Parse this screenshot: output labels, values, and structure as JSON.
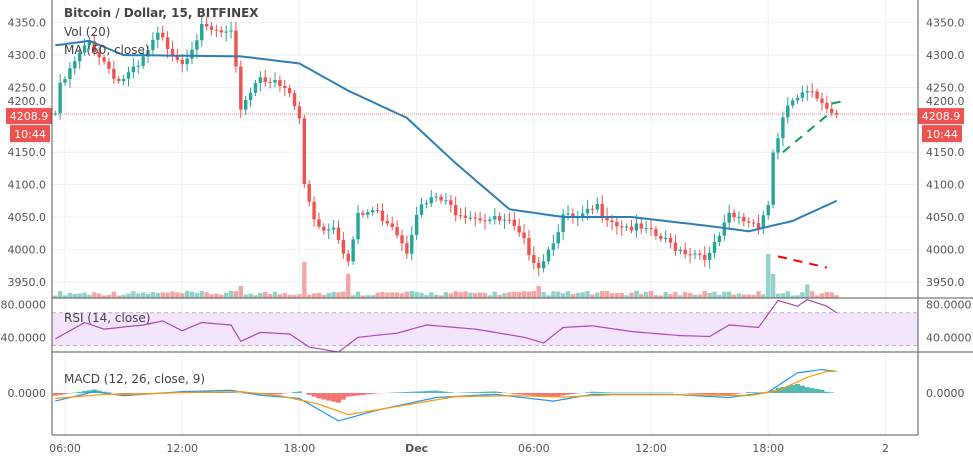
{
  "chart_data": {
    "type": "candlestick",
    "title": "Bitcoin / Dollar, 15, BITFINEX",
    "symbol": "Bitcoin / Dollar",
    "interval": "15",
    "exchange": "BITFINEX",
    "indicators": {
      "volume": "Vol (20)",
      "ma": "MA (60, close)",
      "rsi": "RSI (14, close)",
      "macd": "MACD (12, 26, close, 9)"
    },
    "last_price": "4208.9",
    "countdown": "10:44",
    "price_axis": {
      "range": [
        3925,
        4385
      ],
      "ticks": [
        "4350.0",
        "4300.0",
        "4250.0",
        "4200.0",
        "4150.0",
        "4100.0",
        "4050.0",
        "4000.0",
        "3950.0"
      ]
    },
    "rsi_axis": {
      "range": [
        22,
        88
      ],
      "ticks": [
        "80.0000",
        "40.0000"
      ],
      "band": [
        30,
        70
      ]
    },
    "macd_axis": {
      "ticks": [
        "0.0000"
      ]
    },
    "time_ticks": [
      {
        "t": "11-30 06:00",
        "label": "06:00"
      },
      {
        "t": "11-30 12:00",
        "label": "12:00"
      },
      {
        "t": "11-30 18:00",
        "label": "18:00"
      },
      {
        "t": "12-01 00:00",
        "label": "Dec"
      },
      {
        "t": "12-01 06:00",
        "label": "06:00"
      },
      {
        "t": "12-01 12:00",
        "label": "12:00"
      },
      {
        "t": "12-01 18:00",
        "label": "18:00"
      },
      {
        "t": "12-02 00:00",
        "label": "2"
      }
    ],
    "time_range": [
      "11-30 05:20",
      "12-02 01:40"
    ],
    "price_path": [
      [
        "11-30 05:30",
        4210
      ],
      [
        "11-30 05:45",
        4250
      ],
      [
        "11-30 06:45",
        4300
      ],
      [
        "11-30 07:15",
        4320
      ],
      [
        "11-30 08:45",
        4260
      ],
      [
        "11-30 09:45",
        4280
      ],
      [
        "11-30 10:45",
        4330
      ],
      [
        "11-30 12:00",
        4290
      ],
      [
        "11-30 13:00",
        4340
      ],
      [
        "11-30 14:30",
        4330
      ],
      [
        "11-30 15:00",
        4220
      ],
      [
        "11-30 16:00",
        4270
      ],
      [
        "11-30 17:00",
        4250
      ],
      [
        "11-30 17:30",
        4240
      ],
      [
        "11-30 18:00",
        4200
      ],
      [
        "11-30 18:15",
        4100
      ],
      [
        "11-30 18:45",
        4050
      ],
      [
        "11-30 19:15",
        4030
      ],
      [
        "11-30 19:45",
        4040
      ],
      [
        "11-30 20:30",
        3980
      ],
      [
        "11-30 21:00",
        4050
      ],
      [
        "11-30 21:45",
        4060
      ],
      [
        "11-30 22:45",
        4040
      ],
      [
        "11-30 23:30",
        4000
      ],
      [
        "12-01 00:00",
        4060
      ],
      [
        "12-01 01:00",
        4080
      ],
      [
        "12-01 02:00",
        4060
      ],
      [
        "12-01 03:15",
        4050
      ],
      [
        "12-01 04:45",
        4040
      ],
      [
        "12-01 05:30",
        4010
      ],
      [
        "12-01 06:15",
        3975
      ],
      [
        "12-01 06:45",
        4000
      ],
      [
        "12-01 07:30",
        4050
      ],
      [
        "12-01 08:15",
        4045
      ],
      [
        "12-01 09:15",
        4065
      ],
      [
        "12-01 10:15",
        4040
      ],
      [
        "12-01 11:30",
        4030
      ],
      [
        "12-01 12:15",
        4020
      ],
      [
        "12-01 13:30",
        4000
      ],
      [
        "12-01 15:00",
        3990
      ],
      [
        "12-01 16:00",
        4050
      ],
      [
        "12-01 17:30",
        4040
      ],
      [
        "12-01 18:00",
        4070
      ],
      [
        "12-01 18:15",
        4150
      ],
      [
        "12-01 18:45",
        4200
      ],
      [
        "12-01 19:15",
        4230
      ],
      [
        "12-01 20:00",
        4240
      ],
      [
        "12-01 20:45",
        4230
      ],
      [
        "12-01 21:30",
        4209
      ]
    ],
    "ma_path": [
      [
        "11-30 05:30",
        4315
      ],
      [
        "11-30 07:15",
        4322
      ],
      [
        "11-30 09:00",
        4300
      ],
      [
        "11-30 15:00",
        4298
      ],
      [
        "11-30 18:00",
        4287
      ],
      [
        "11-30 20:30",
        4245
      ],
      [
        "11-30 23:30",
        4203
      ],
      [
        "12-01 02:00",
        4133
      ],
      [
        "12-01 04:45",
        4062
      ],
      [
        "12-01 07:30",
        4050
      ],
      [
        "12-01 11:00",
        4050
      ],
      [
        "12-01 15:00",
        4036
      ],
      [
        "12-01 17:00",
        4028
      ],
      [
        "12-01 19:15",
        4044
      ],
      [
        "12-01 21:30",
        4075
      ]
    ],
    "volume_spikes": [
      [
        "11-30 18:15",
        0.45
      ],
      [
        "11-30 20:30",
        0.3
      ],
      [
        "11-30 15:00",
        0.15
      ],
      [
        "12-01 06:15",
        0.15
      ],
      [
        "12-01 18:00",
        0.55
      ],
      [
        "12-01 18:15",
        0.3
      ],
      [
        "12-01 20:00",
        0.17
      ]
    ],
    "rsi_path": [
      [
        "11-30 05:30",
        38
      ],
      [
        "11-30 07:00",
        58
      ],
      [
        "11-30 08:00",
        50
      ],
      [
        "11-30 10:00",
        55
      ],
      [
        "11-30 11:00",
        60
      ],
      [
        "11-30 12:00",
        48
      ],
      [
        "11-30 13:00",
        58
      ],
      [
        "11-30 14:30",
        55
      ],
      [
        "11-30 15:00",
        35
      ],
      [
        "11-30 16:00",
        46
      ],
      [
        "11-30 17:30",
        44
      ],
      [
        "11-30 18:30",
        28
      ],
      [
        "11-30 20:00",
        22
      ],
      [
        "11-30 21:00",
        40
      ],
      [
        "11-30 23:00",
        45
      ],
      [
        "12-01 00:30",
        55
      ],
      [
        "12-01 03:00",
        50
      ],
      [
        "12-01 05:30",
        40
      ],
      [
        "12-01 06:30",
        33
      ],
      [
        "12-01 07:30",
        52
      ],
      [
        "12-01 09:00",
        54
      ],
      [
        "12-01 11:00",
        47
      ],
      [
        "12-01 13:30",
        42
      ],
      [
        "12-01 15:00",
        41
      ],
      [
        "12-01 16:00",
        55
      ],
      [
        "12-01 17:30",
        52
      ],
      [
        "12-01 18:30",
        85
      ],
      [
        "12-01 19:30",
        78
      ],
      [
        "12-01 20:00",
        86
      ],
      [
        "12-01 21:00",
        78
      ],
      [
        "12-01 21:30",
        70
      ]
    ],
    "macd_path": [
      [
        "11-30 05:30",
        -18
      ],
      [
        "11-30 07:30",
        3
      ],
      [
        "11-30 09:00",
        -6
      ],
      [
        "11-30 12:00",
        3
      ],
      [
        "11-30 14:30",
        6
      ],
      [
        "11-30 16:00",
        -5
      ],
      [
        "11-30 18:00",
        -12
      ],
      [
        "11-30 20:00",
        -62
      ],
      [
        "11-30 22:00",
        -38
      ],
      [
        "12-01 01:00",
        -10
      ],
      [
        "12-01 04:00",
        -3
      ],
      [
        "12-01 07:00",
        -18
      ],
      [
        "12-01 09:00",
        -3
      ],
      [
        "12-01 13:00",
        -3
      ],
      [
        "12-01 16:00",
        -10
      ],
      [
        "12-01 18:00",
        2
      ],
      [
        "12-01 19:30",
        45
      ],
      [
        "12-01 20:45",
        52
      ],
      [
        "12-01 21:30",
        48
      ]
    ],
    "signal_path": [
      [
        "11-30 05:30",
        -12
      ],
      [
        "11-30 08:00",
        -3
      ],
      [
        "11-30 09:30",
        -3
      ],
      [
        "11-30 12:00",
        1
      ],
      [
        "11-30 15:00",
        3
      ],
      [
        "11-30 17:00",
        -6
      ],
      [
        "11-30 19:00",
        -25
      ],
      [
        "11-30 20:30",
        -48
      ],
      [
        "11-30 23:00",
        -30
      ],
      [
        "12-01 02:00",
        -8
      ],
      [
        "12-01 05:00",
        -6
      ],
      [
        "12-01 07:30",
        -9
      ],
      [
        "12-01 10:00",
        -4
      ],
      [
        "12-01 14:00",
        -4
      ],
      [
        "12-01 17:00",
        -6
      ],
      [
        "12-01 18:30",
        5
      ],
      [
        "12-01 20:00",
        35
      ],
      [
        "12-01 21:00",
        48
      ],
      [
        "12-01 21:30",
        48
      ]
    ],
    "colors": {
      "up": "#26a69a",
      "down": "#ef5350",
      "ma": "#2e7db3",
      "rsi": "#ab47bc",
      "rsi_band": "#f3e5fc",
      "macd": "#2196f3",
      "signal": "#ff9800",
      "last_price": "#ef5350",
      "grid": "#eef2f6"
    },
    "drawings": [
      {
        "type": "dashed-trendline",
        "color": "#0f9d58",
        "pane": "price",
        "from": [
          "12-01 18:45",
          4150
        ],
        "to": [
          "12-01 21:15",
          4213
        ]
      },
      {
        "type": "dashed-trendline",
        "color": "#0f9d58",
        "pane": "price",
        "from": [
          "12-01 21:15",
          4225
        ],
        "to": [
          "12-01 22:00",
          4230
        ]
      },
      {
        "type": "dashed-trendline",
        "color": "#ff0000",
        "pane": "volume",
        "from": [
          "12-01 18:30",
          0.52
        ],
        "to": [
          "12-01 21:00",
          0.38
        ]
      }
    ]
  }
}
